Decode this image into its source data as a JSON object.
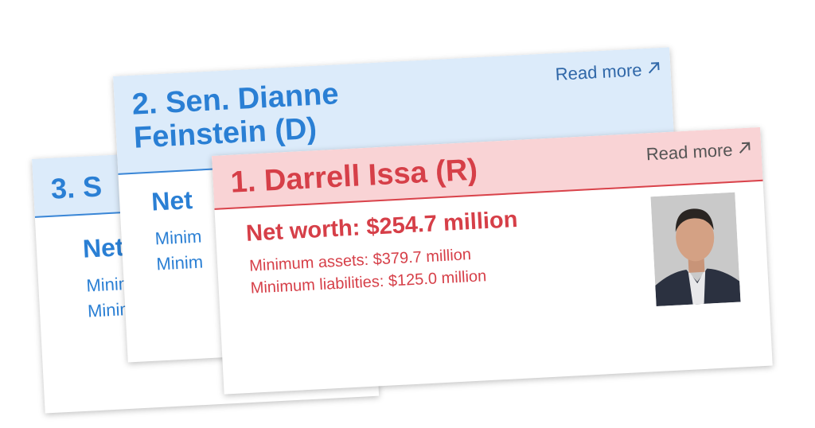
{
  "cards": [
    {
      "title": "3. S",
      "net_worth": "Net",
      "lines": [
        "Minim",
        "Minim"
      ]
    },
    {
      "title": "2. Sen. Dianne Feinstein (D)",
      "read_more": "Read more",
      "net_worth": "Net",
      "lines": [
        "Minim",
        "Minim"
      ]
    },
    {
      "title": "1. Darrell Issa (R)",
      "read_more": "Read more",
      "net_worth": "Net worth: $254.7 million",
      "lines": [
        "Minimum assets: $379.7 million",
        "Minimum liabilities: $125.0 million"
      ]
    }
  ]
}
